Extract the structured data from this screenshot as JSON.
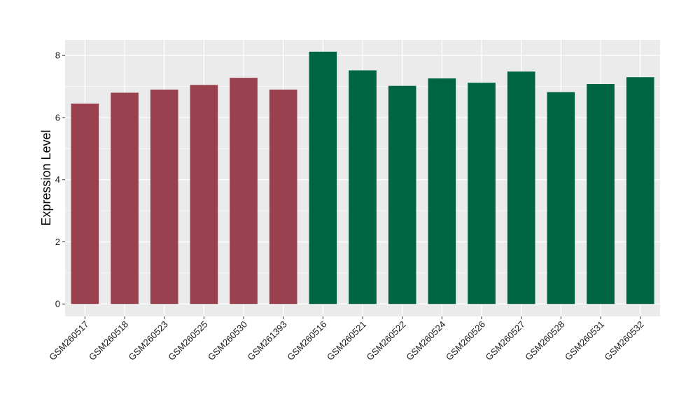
{
  "chart_data": {
    "type": "bar",
    "title": "",
    "xlabel": "",
    "ylabel": "Expression Level",
    "ylim": [
      -0.4,
      8.5
    ],
    "yticks": [
      0,
      2,
      4,
      6,
      8
    ],
    "grid": true,
    "legend": "none",
    "panel_color": "#EBEBEB",
    "grid_color": "#FFFFFF",
    "categories": [
      "GSM260517",
      "GSM260518",
      "GSM260523",
      "GSM260525",
      "GSM260530",
      "GSM261393",
      "GSM260516",
      "GSM260521",
      "GSM260522",
      "GSM260524",
      "GSM260526",
      "GSM260527",
      "GSM260528",
      "GSM260531",
      "GSM260532"
    ],
    "values": [
      6.45,
      6.8,
      6.9,
      7.05,
      7.28,
      6.9,
      8.12,
      7.52,
      7.02,
      7.26,
      7.12,
      7.48,
      6.82,
      7.08,
      7.3
    ],
    "group_colors": [
      "#9A4150",
      "#9A4150",
      "#9A4150",
      "#9A4150",
      "#9A4150",
      "#9A4150",
      "#006543",
      "#006543",
      "#006543",
      "#006543",
      "#006543",
      "#006543",
      "#006543",
      "#006543",
      "#006543"
    ]
  }
}
